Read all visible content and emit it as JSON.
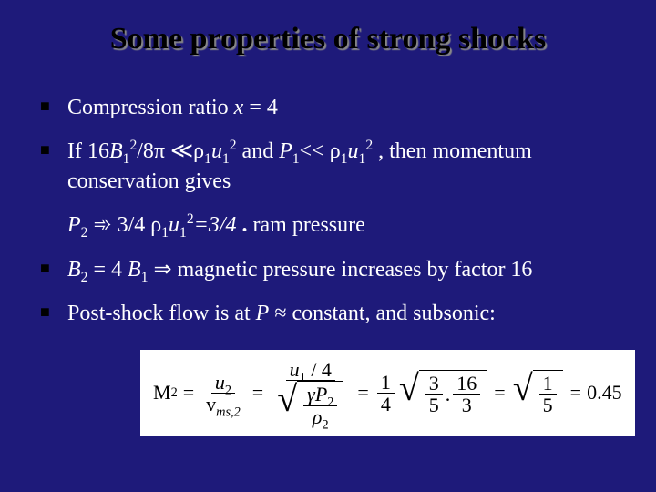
{
  "title": "Some properties of strong shocks",
  "bullets": {
    "b1": {
      "pre": "Compression ratio ",
      "var": "x",
      "post": " = 4"
    },
    "b2": {
      "pre": "If  16",
      "B": "B",
      "sub1": "1",
      "sup1": "2",
      "over8pi": "/8π ≪",
      "rho1": "ρ",
      "rsub1": "1",
      "u1": "u",
      "usub1": "1",
      "usup1": "2",
      "and": " and  ",
      "P": "P",
      "psub": "1",
      "ll": "<< ",
      "rho2": "ρ",
      "rsub2": "1",
      "u2": "u",
      "usub2": "1",
      "usup2": "2",
      "then": " , then momentum",
      "line2": "conservation gives"
    },
    "p2line": {
      "P": "P",
      "psub": "2",
      "arrow": " ➾ 3/4 ",
      "rho": "ρ",
      "rsub": "1",
      "u": "u",
      "usub": "1",
      "usup": "2",
      "eq": "=3/4 ",
      "dot": ".",
      "post": " ram pressure"
    },
    "b3": {
      "B2": "B",
      "b2sub": "2",
      "eq": " = 4 ",
      "B1": "B",
      "b1sub": "1",
      "arrow": " ⇒  magnetic pressure increases by factor 16"
    },
    "b4": {
      "pre": "Post-shock flow is at ",
      "P": "P",
      "post": " ≈ constant, and subsonic:"
    }
  },
  "equation": {
    "M2": "M",
    "M2sub": "2",
    "u2": "u",
    "u2sub": "2",
    "vms": "v",
    "vmssub": "ms,2",
    "u1": "u",
    "u1sub": "1",
    "over4": " / 4",
    "gamma": "γ",
    "P2": "P",
    "P2sub": "2",
    "rho2": "ρ",
    "rho2sub": "2",
    "onequarter_num": "1",
    "onequarter_den": "4",
    "three_num": "3",
    "five_den1": "5",
    "dot": ".",
    "sixteen_num": "16",
    "three_den": "3",
    "one_num": "1",
    "five_den2": "5",
    "result": "0.45",
    "colors": {
      "bg": "#ffffff",
      "fg": "#000000"
    }
  },
  "style": {
    "slide_bg": "#1e1a7a",
    "text_color": "#ffffff",
    "title_color": "#000000",
    "bullet_color": "#000000",
    "title_fontsize": 34,
    "body_fontsize": 24,
    "eq_fontsize": 22
  }
}
